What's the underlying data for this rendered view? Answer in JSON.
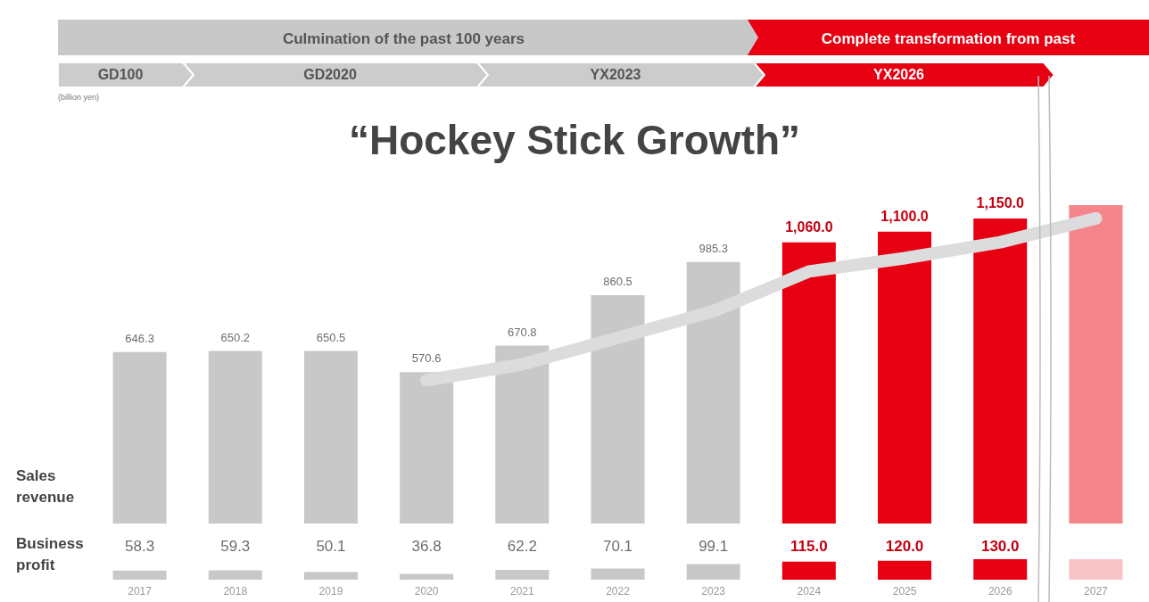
{
  "chart_data": [
    {
      "type": "bar",
      "title": "“Hockey Stick Growth”",
      "ylabel": "Sales revenue",
      "categories": [
        "2017",
        "2018",
        "2019",
        "2020",
        "2021",
        "2022",
        "2023",
        "2024",
        "2025",
        "2026",
        "2027"
      ],
      "series": [
        {
          "values": [
            646.3,
            650.2,
            650.5,
            570.6,
            670.8,
            860.5,
            985.3,
            1060.0,
            1100.0,
            1150.0,
            null
          ],
          "colors": [
            "#c8c8c8",
            "#c8c8c8",
            "#c8c8c8",
            "#c8c8c8",
            "#c8c8c8",
            "#c8c8c8",
            "#c8c8c8",
            "#e60012",
            "#e60012",
            "#e60012",
            "#e60012"
          ],
          "value_labels": [
            "646.3",
            "650.2",
            "650.5",
            "570.6",
            "670.8",
            "860.5",
            "985.3",
            "1,060.0",
            "1,100.0",
            "1,150.0",
            null
          ]
        },
        {
          "type": "line",
          "color": "#dcdcdc",
          "values": [
            null,
            null,
            null,
            540,
            600,
            700,
            800,
            950,
            1000,
            1060,
            1150
          ]
        }
      ],
      "bands": [
        {
          "axis": "x",
          "from": "2027",
          "to": "2027",
          "color": "#f3858b"
        }
      ],
      "grid": false,
      "legend": false,
      "tick_labels": false,
      "annotations": [
        "Culmination of the past 100 years",
        "Complete transformation from past",
        "GD100",
        "GD2020",
        "YX2023",
        "YX2026",
        "(billion yen)"
      ]
    },
    {
      "type": "bar",
      "ylabel": "Business profit",
      "categories": [
        "2017",
        "2018",
        "2019",
        "2020",
        "2021",
        "2022",
        "2023",
        "2024",
        "2025",
        "2026",
        "2027"
      ],
      "series": [
        {
          "values": [
            58.3,
            59.3,
            50.1,
            36.8,
            62.2,
            70.1,
            99.1,
            115.0,
            120.0,
            130.0,
            null
          ],
          "colors": [
            "#c8c8c8",
            "#c8c8c8",
            "#c8c8c8",
            "#c8c8c8",
            "#c8c8c8",
            "#c8c8c8",
            "#c8c8c8",
            "#e60012",
            "#e60012",
            "#e60012",
            "#e60012"
          ],
          "value_labels": [
            "58.3",
            "59.3",
            "50.1",
            "36.8",
            "62.2",
            "70.1",
            "99.1",
            "115.0",
            "120.0",
            "130.0",
            null
          ]
        }
      ],
      "bands": [
        {
          "axis": "x",
          "from": "2027",
          "to": "2027",
          "color": "#f9c4c7"
        }
      ],
      "ylim": [
        0,
        130
      ],
      "grid": false,
      "legend": false,
      "tick_labels": "x"
    }
  ]
}
